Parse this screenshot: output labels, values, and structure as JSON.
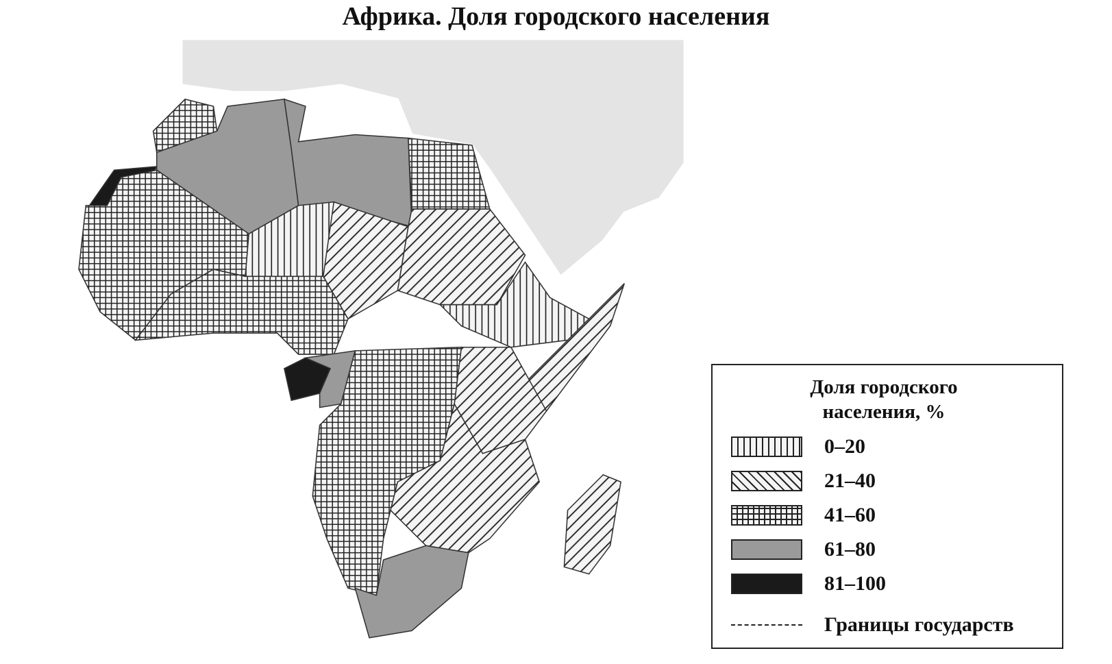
{
  "title": "Африка. Доля городского населения",
  "legend": {
    "title": "Доля городского населения, %",
    "items": [
      "0–20",
      "21–40",
      "41–60",
      "61–80",
      "81–100"
    ],
    "borders": "Границы государств"
  }
}
